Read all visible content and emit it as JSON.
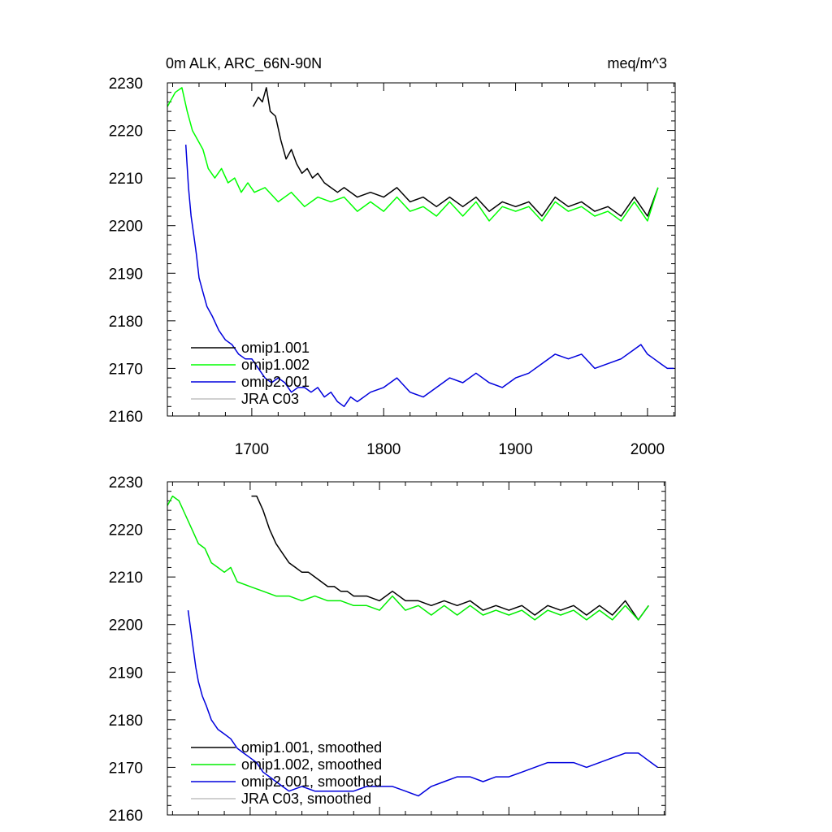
{
  "chart_data": [
    {
      "type": "line",
      "title": "0m ALK, ARC_66N-90N",
      "units": "meq/m^3",
      "xlim": [
        1636,
        2021
      ],
      "ylim": [
        2160,
        2230
      ],
      "xticks": [
        1700,
        1800,
        1900,
        2000
      ],
      "xtick_labels": [
        "1700",
        "1800",
        "1900",
        "2000"
      ],
      "yticks": [
        2160,
        2170,
        2180,
        2190,
        2200,
        2210,
        2220,
        2230
      ],
      "ytick_labels": [
        "2160",
        "2170",
        "2180",
        "2190",
        "2200",
        "2210",
        "2220",
        "2230"
      ],
      "legend_position": "lower-left",
      "series": [
        {
          "name": "omip1.001",
          "color": "#000000",
          "x": [
            1701,
            1705,
            1708,
            1711,
            1714,
            1718,
            1722,
            1726,
            1730,
            1734,
            1738,
            1742,
            1746,
            1750,
            1755,
            1760,
            1765,
            1770,
            1780,
            1790,
            1800,
            1810,
            1820,
            1830,
            1840,
            1850,
            1860,
            1870,
            1880,
            1890,
            1900,
            1910,
            1920,
            1930,
            1940,
            1950,
            1960,
            1970,
            1980,
            1990,
            2000,
            2008
          ],
          "y": [
            2225,
            2227,
            2226,
            2229,
            2224,
            2223,
            2218,
            2214,
            2216,
            2213,
            2211,
            2212,
            2210,
            2211,
            2209,
            2208,
            2207,
            2208,
            2206,
            2207,
            2206,
            2208,
            2205,
            2206,
            2204,
            2206,
            2204,
            2206,
            2203,
            2205,
            2204,
            2205,
            2202,
            2206,
            2204,
            2205,
            2203,
            2204,
            2202,
            2206,
            2202,
            2208
          ]
        },
        {
          "name": "omip1.002",
          "color": "#00ff00",
          "x": [
            1636,
            1642,
            1647,
            1651,
            1655,
            1659,
            1663,
            1667,
            1672,
            1677,
            1682,
            1687,
            1692,
            1697,
            1702,
            1710,
            1720,
            1730,
            1740,
            1750,
            1760,
            1770,
            1780,
            1790,
            1800,
            1810,
            1820,
            1830,
            1840,
            1850,
            1860,
            1870,
            1880,
            1890,
            1900,
            1910,
            1920,
            1930,
            1940,
            1950,
            1960,
            1970,
            1980,
            1990,
            2000,
            2008
          ],
          "y": [
            2225,
            2228,
            2229,
            2224,
            2220,
            2218,
            2216,
            2212,
            2210,
            2212,
            2209,
            2210,
            2207,
            2209,
            2207,
            2208,
            2205,
            2207,
            2204,
            2206,
            2205,
            2206,
            2203,
            2205,
            2203,
            2206,
            2203,
            2204,
            2202,
            2205,
            2202,
            2205,
            2201,
            2204,
            2203,
            2204,
            2201,
            2205,
            2203,
            2204,
            2202,
            2203,
            2201,
            2205,
            2201,
            2208
          ]
        },
        {
          "name": "omip2.001",
          "color": "#0000dd",
          "x": [
            1650,
            1652,
            1654,
            1656,
            1658,
            1660,
            1663,
            1666,
            1670,
            1675,
            1680,
            1685,
            1690,
            1695,
            1700,
            1705,
            1710,
            1715,
            1720,
            1725,
            1730,
            1735,
            1740,
            1745,
            1750,
            1755,
            1760,
            1765,
            1770,
            1775,
            1780,
            1790,
            1800,
            1810,
            1820,
            1830,
            1840,
            1850,
            1860,
            1870,
            1880,
            1890,
            1900,
            1910,
            1920,
            1930,
            1940,
            1950,
            1960,
            1970,
            1980,
            1990,
            1995,
            2000,
            2005,
            2010,
            2015,
            2020
          ],
          "y": [
            2217,
            2208,
            2202,
            2198,
            2194,
            2189,
            2186,
            2183,
            2181,
            2178,
            2176,
            2175,
            2173,
            2172,
            2172,
            2170,
            2168,
            2167,
            2168,
            2167,
            2165,
            2166,
            2166,
            2165,
            2166,
            2164,
            2165,
            2163,
            2162,
            2164,
            2163,
            2165,
            2166,
            2168,
            2165,
            2164,
            2166,
            2168,
            2167,
            2169,
            2167,
            2166,
            2168,
            2169,
            2171,
            2173,
            2172,
            2173,
            2170,
            2171,
            2172,
            2174,
            2175,
            2173,
            2172,
            2171,
            2170,
            2170
          ]
        },
        {
          "name": "JRA C03",
          "color": "#c0c0c0",
          "x": [],
          "y": []
        }
      ]
    },
    {
      "type": "line",
      "xlim": [
        1636,
        2021
      ],
      "ylim": [
        2160,
        2230
      ],
      "yticks": [
        2160,
        2170,
        2180,
        2190,
        2200,
        2210,
        2220,
        2230
      ],
      "ytick_labels": [
        "2160",
        "2170",
        "2180",
        "2190",
        "2200",
        "2210",
        "2220",
        "2230"
      ],
      "legend_position": "lower-left",
      "series": [
        {
          "name": "omip1.001, smoothed",
          "color": "#000000",
          "x": [
            1701,
            1705,
            1710,
            1715,
            1720,
            1725,
            1730,
            1735,
            1740,
            1745,
            1750,
            1755,
            1760,
            1765,
            1770,
            1775,
            1780,
            1790,
            1800,
            1810,
            1820,
            1830,
            1840,
            1850,
            1860,
            1870,
            1880,
            1890,
            1900,
            1910,
            1920,
            1930,
            1940,
            1950,
            1960,
            1970,
            1980,
            1990,
            2000,
            2008
          ],
          "y": [
            2227,
            2227,
            2224,
            2220,
            2217,
            2215,
            2213,
            2212,
            2211,
            2211,
            2210,
            2209,
            2208,
            2208,
            2207,
            2207,
            2206,
            2206,
            2205,
            2207,
            2205,
            2205,
            2204,
            2205,
            2204,
            2205,
            2203,
            2204,
            2203,
            2204,
            2202,
            2204,
            2203,
            2204,
            2202,
            2204,
            2202,
            2205,
            2201,
            2204
          ]
        },
        {
          "name": "omip1.002, smoothed",
          "color": "#00ee00",
          "x": [
            1636,
            1640,
            1645,
            1650,
            1655,
            1660,
            1665,
            1670,
            1675,
            1680,
            1685,
            1690,
            1700,
            1710,
            1720,
            1730,
            1740,
            1750,
            1760,
            1770,
            1780,
            1790,
            1800,
            1810,
            1820,
            1830,
            1840,
            1850,
            1860,
            1870,
            1880,
            1890,
            1900,
            1910,
            1920,
            1930,
            1940,
            1950,
            1960,
            1970,
            1980,
            1990,
            2000,
            2008
          ],
          "y": [
            2225,
            2227,
            2226,
            2223,
            2220,
            2217,
            2216,
            2213,
            2212,
            2211,
            2212,
            2209,
            2208,
            2207,
            2206,
            2206,
            2205,
            2206,
            2205,
            2205,
            2204,
            2204,
            2203,
            2206,
            2203,
            2204,
            2202,
            2204,
            2202,
            2204,
            2202,
            2203,
            2202,
            2203,
            2201,
            2203,
            2202,
            2203,
            2201,
            2203,
            2201,
            2204,
            2201,
            2204
          ]
        },
        {
          "name": "omip2.001, smoothed",
          "color": "#0000dd",
          "x": [
            1652,
            1654,
            1656,
            1658,
            1660,
            1663,
            1666,
            1670,
            1675,
            1680,
            1685,
            1690,
            1695,
            1700,
            1705,
            1710,
            1715,
            1720,
            1725,
            1730,
            1740,
            1750,
            1760,
            1770,
            1780,
            1790,
            1800,
            1810,
            1820,
            1830,
            1840,
            1850,
            1860,
            1870,
            1880,
            1890,
            1900,
            1910,
            1920,
            1930,
            1940,
            1950,
            1960,
            1970,
            1980,
            1990,
            2000,
            2005,
            2010,
            2015
          ],
          "y": [
            2203,
            2199,
            2195,
            2191,
            2188,
            2185,
            2183,
            2180,
            2178,
            2177,
            2176,
            2174,
            2173,
            2172,
            2171,
            2169,
            2168,
            2167,
            2166,
            2165,
            2166,
            2165,
            2165,
            2165,
            2165,
            2166,
            2166,
            2166,
            2165,
            2164,
            2166,
            2167,
            2168,
            2168,
            2167,
            2168,
            2168,
            2169,
            2170,
            2171,
            2171,
            2171,
            2170,
            2171,
            2172,
            2173,
            2173,
            2172,
            2171,
            2170
          ]
        },
        {
          "name": "JRA C03, smoothed",
          "color": "#c0c0c0",
          "x": [],
          "y": []
        }
      ]
    }
  ]
}
